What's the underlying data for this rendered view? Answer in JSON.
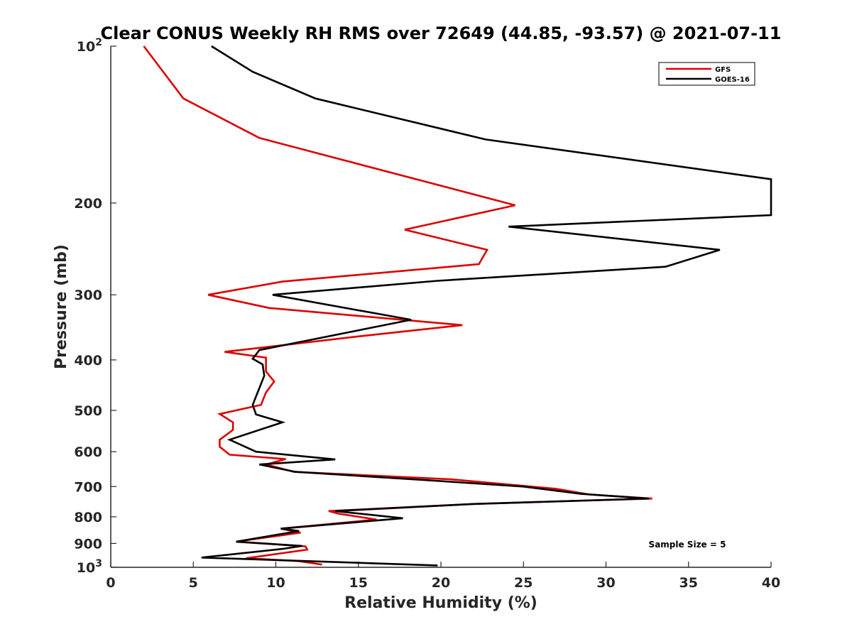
{
  "chart_data": {
    "type": "line",
    "title": "Clear CONUS Weekly RH RMS over 72649 (44.85, -93.57) @ 2021-07-11",
    "xlabel": "Relative Humidity (%)",
    "ylabel": "Pressure (mb)",
    "xlim": [
      0,
      40
    ],
    "ylim": [
      100,
      1000
    ],
    "y_scale": "log",
    "y_reversed": true,
    "x_ticks": [
      "0",
      "5",
      "10",
      "15",
      "20",
      "25",
      "30",
      "35",
      "40"
    ],
    "y_ticks": [
      {
        "value": 100,
        "base": "10",
        "exp": "2"
      },
      {
        "value": 200,
        "label": "200"
      },
      {
        "value": 300,
        "label": "300"
      },
      {
        "value": 400,
        "label": "400"
      },
      {
        "value": 500,
        "label": "500"
      },
      {
        "value": 600,
        "label": "600"
      },
      {
        "value": 700,
        "label": "700"
      },
      {
        "value": 800,
        "label": "800"
      },
      {
        "value": 900,
        "label": "900"
      },
      {
        "value": 1000,
        "base": "10",
        "exp": "3"
      }
    ],
    "legend_position": "top-right",
    "annotation": "Sample Size = 5",
    "series": [
      {
        "name": "GFS",
        "color": "#dd0000",
        "points": [
          [
            2.0,
            100
          ],
          [
            4.4,
            126
          ],
          [
            9.0,
            150
          ],
          [
            24.5,
            202
          ],
          [
            17.8,
            225
          ],
          [
            22.8,
            246
          ],
          [
            22.3,
            262
          ],
          [
            10.4,
            283
          ],
          [
            5.9,
            300
          ],
          [
            9.6,
            318
          ],
          [
            21.3,
            343
          ],
          [
            15.2,
            360
          ],
          [
            6.9,
            386
          ],
          [
            9.4,
            396
          ],
          [
            9.4,
            421
          ],
          [
            9.9,
            440
          ],
          [
            9.4,
            462
          ],
          [
            9.1,
            488
          ],
          [
            6.6,
            508
          ],
          [
            7.4,
            527
          ],
          [
            7.4,
            545
          ],
          [
            6.6,
            569
          ],
          [
            6.6,
            587
          ],
          [
            7.2,
            608
          ],
          [
            10.6,
            620
          ],
          [
            9.4,
            635
          ],
          [
            11.1,
            656
          ],
          [
            20.6,
            678
          ],
          [
            27.0,
            707
          ],
          [
            29.0,
            725
          ],
          [
            32.8,
            738
          ],
          [
            22.0,
            756
          ],
          [
            13.2,
            780
          ],
          [
            13.8,
            789
          ],
          [
            16.1,
            810
          ],
          [
            10.3,
            843
          ],
          [
            11.5,
            858
          ],
          [
            7.6,
            893
          ],
          [
            11.8,
            912
          ],
          [
            11.9,
            925
          ],
          [
            8.2,
            961
          ],
          [
            11.4,
            973
          ],
          [
            12.8,
            988
          ]
        ]
      },
      {
        "name": "GOES-16",
        "color": "#000000",
        "points": [
          [
            6.1,
            100
          ],
          [
            8.6,
            112
          ],
          [
            12.4,
            126
          ],
          [
            22.7,
            151
          ],
          [
            40.0,
            180
          ],
          [
            40.0,
            211
          ],
          [
            24.1,
            222
          ],
          [
            36.9,
            246
          ],
          [
            33.6,
            265
          ],
          [
            19.8,
            282
          ],
          [
            9.8,
            300
          ],
          [
            18.2,
            335
          ],
          [
            9.0,
            383
          ],
          [
            8.6,
            398
          ],
          [
            9.2,
            408
          ],
          [
            9.3,
            429
          ],
          [
            8.6,
            488
          ],
          [
            8.8,
            509
          ],
          [
            10.4,
            527
          ],
          [
            7.2,
            569
          ],
          [
            8.8,
            600
          ],
          [
            13.6,
            621
          ],
          [
            9.0,
            635
          ],
          [
            11.2,
            656
          ],
          [
            19.0,
            680
          ],
          [
            25.0,
            700
          ],
          [
            28.5,
            723
          ],
          [
            32.6,
            738
          ],
          [
            22.0,
            756
          ],
          [
            13.6,
            780
          ],
          [
            17.7,
            805
          ],
          [
            10.3,
            843
          ],
          [
            11.4,
            852
          ],
          [
            7.6,
            893
          ],
          [
            11.6,
            910
          ],
          [
            10.4,
            922
          ],
          [
            5.5,
            958
          ],
          [
            19.8,
            992
          ]
        ]
      }
    ]
  }
}
